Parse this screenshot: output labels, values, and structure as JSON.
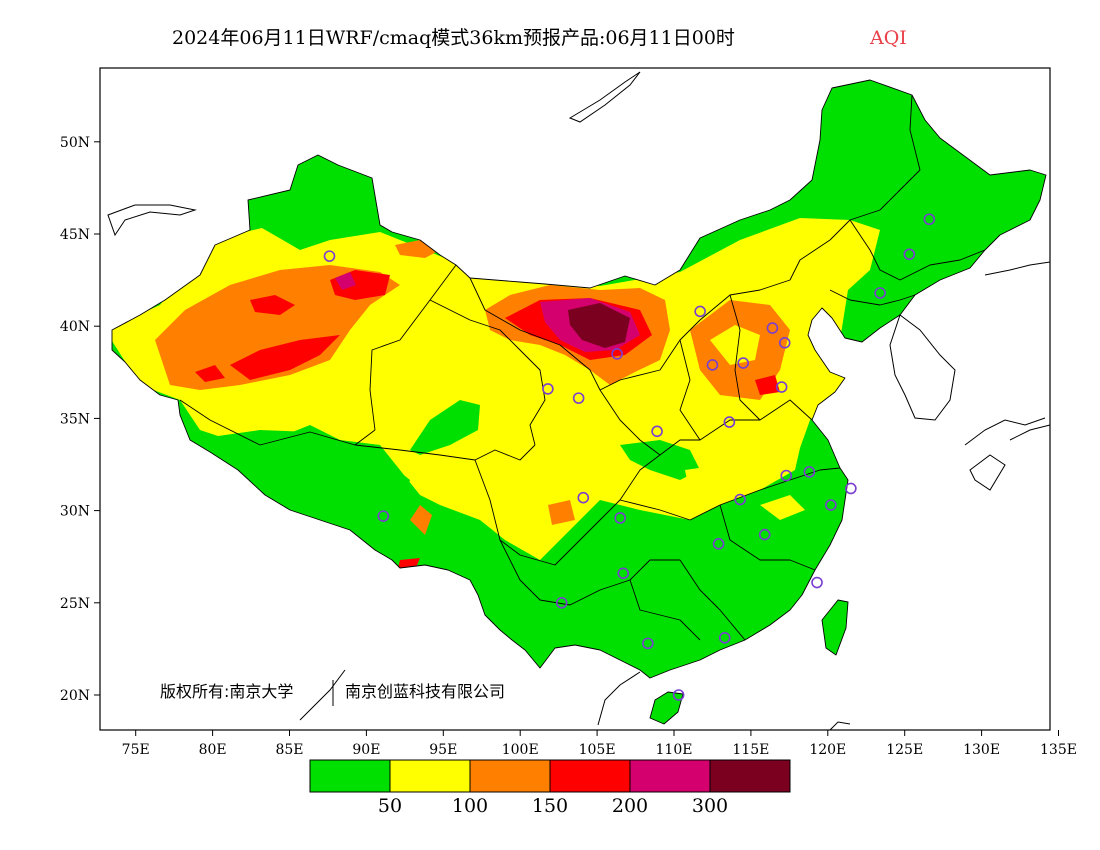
{
  "title": {
    "main": "2024年06月11日WRF/cmaq模式36km预报产品:06月11日00时",
    "variable": "AQI"
  },
  "axes": {
    "lon_labels": [
      "75E",
      "80E",
      "85E",
      "90E",
      "95E",
      "100E",
      "105E",
      "110E",
      "115E",
      "120E",
      "125E",
      "130E",
      "135E"
    ],
    "lon_values": [
      75,
      80,
      85,
      90,
      95,
      100,
      105,
      110,
      115,
      120,
      125,
      130,
      135
    ],
    "lat_labels": [
      "20N",
      "25N",
      "30N",
      "35N",
      "40N",
      "45N",
      "50N"
    ],
    "lat_values": [
      20,
      25,
      30,
      35,
      40,
      45,
      50
    ],
    "lon_range": [
      73,
      135
    ],
    "lat_range": [
      18,
      54
    ]
  },
  "legend": {
    "colors": [
      "#00e000",
      "#ffff00",
      "#ff7f00",
      "#ff0000",
      "#d4006e",
      "#7b0020"
    ],
    "color_names": [
      "green",
      "yellow",
      "orange",
      "red",
      "purple",
      "maroon"
    ],
    "labels": [
      "50",
      "100",
      "150",
      "200",
      "300"
    ]
  },
  "copyright": {
    "left": "版权所有:南京大学",
    "right": "南京创蓝科技有限公司"
  },
  "stations": [
    {
      "lon": 87.6,
      "lat": 43.8
    },
    {
      "lon": 91.1,
      "lat": 29.7
    },
    {
      "lon": 103.8,
      "lat": 36.1
    },
    {
      "lon": 101.8,
      "lat": 36.6
    },
    {
      "lon": 106.3,
      "lat": 38.5
    },
    {
      "lon": 111.7,
      "lat": 40.8
    },
    {
      "lon": 116.4,
      "lat": 39.9
    },
    {
      "lon": 117.2,
      "lat": 39.1
    },
    {
      "lon": 114.5,
      "lat": 38.0
    },
    {
      "lon": 112.5,
      "lat": 37.9
    },
    {
      "lon": 117.0,
      "lat": 36.7
    },
    {
      "lon": 113.6,
      "lat": 34.8
    },
    {
      "lon": 108.9,
      "lat": 34.3
    },
    {
      "lon": 104.1,
      "lat": 30.7
    },
    {
      "lon": 106.5,
      "lat": 29.6
    },
    {
      "lon": 106.7,
      "lat": 26.6
    },
    {
      "lon": 102.7,
      "lat": 25.0
    },
    {
      "lon": 108.3,
      "lat": 22.8
    },
    {
      "lon": 113.3,
      "lat": 23.1
    },
    {
      "lon": 110.3,
      "lat": 20.0
    },
    {
      "lon": 119.3,
      "lat": 26.1
    },
    {
      "lon": 115.9,
      "lat": 28.7
    },
    {
      "lon": 112.9,
      "lat": 28.2
    },
    {
      "lon": 114.3,
      "lat": 30.6
    },
    {
      "lon": 117.3,
      "lat": 31.9
    },
    {
      "lon": 118.8,
      "lat": 32.1
    },
    {
      "lon": 120.2,
      "lat": 30.3
    },
    {
      "lon": 121.5,
      "lat": 31.2
    },
    {
      "lon": 123.4,
      "lat": 41.8
    },
    {
      "lon": 125.3,
      "lat": 43.9
    },
    {
      "lon": 126.6,
      "lat": 45.8
    }
  ]
}
